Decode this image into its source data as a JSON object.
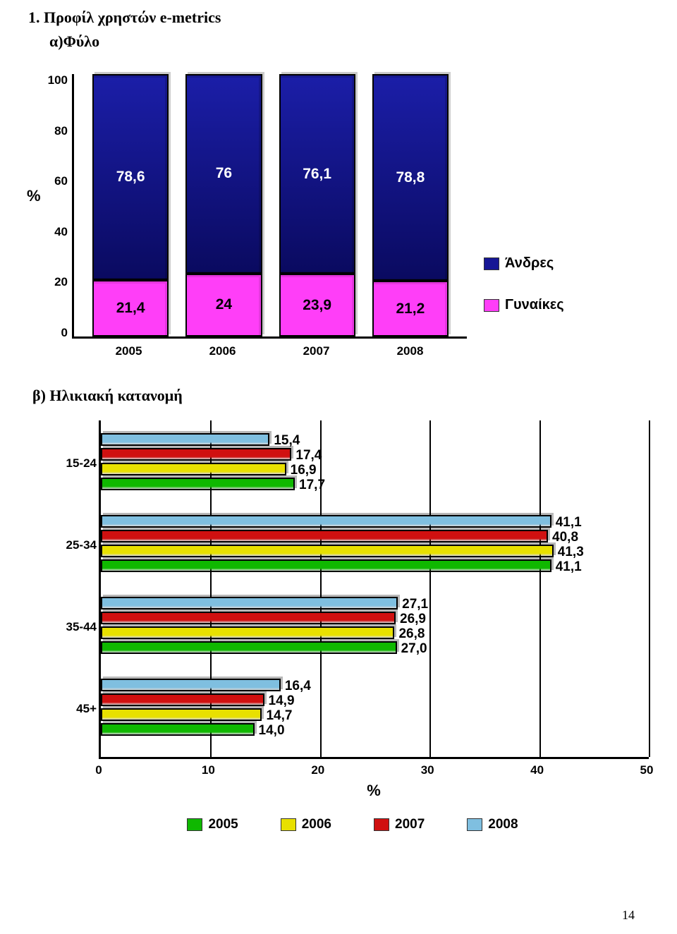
{
  "page": {
    "title1": "1. Προφίλ χρηστών e-metrics",
    "title2": "α)Φύλο",
    "title3": "β) Ηλικιακή κατανομή",
    "page_number": "14"
  },
  "stacked_chart": {
    "type": "stacked-bar-100",
    "y_axis_label": "%",
    "ylim": [
      0,
      100
    ],
    "ytick_step": 20,
    "y_ticks": [
      "100",
      "80",
      "60",
      "40",
      "20",
      "0"
    ],
    "categories": [
      "2005",
      "2006",
      "2007",
      "2008"
    ],
    "series": [
      {
        "name": "Άνδρες",
        "color_top": "#1b1ea8",
        "color_bottom": "#0a0a60",
        "label_color": "#ffffff"
      },
      {
        "name": "Γυναίκες",
        "color": "#ff3ef8",
        "label_color": "#000000"
      }
    ],
    "data": {
      "men": [
        78.6,
        76,
        76.1,
        78.8
      ],
      "women": [
        21.4,
        24,
        23.9,
        21.2
      ],
      "men_labels": [
        "78,6",
        "76",
        "76,1",
        "78,8"
      ],
      "women_labels": [
        "21,4",
        "24",
        "23,9",
        "21,2"
      ]
    },
    "legend": [
      {
        "label": "Άνδρες",
        "color": "#161695"
      },
      {
        "label": "Γυναίκες",
        "color": "#ff3ef8"
      }
    ],
    "plot_background": "#ffffff"
  },
  "hbar_chart": {
    "type": "grouped-horizontal-bar",
    "x_axis_label": "%",
    "xlim": [
      0,
      50
    ],
    "xtick_step": 10,
    "x_ticks": [
      "0",
      "10",
      "20",
      "30",
      "40",
      "50"
    ],
    "categories": [
      "15-24",
      "25-34",
      "35-44",
      "45+"
    ],
    "series": [
      {
        "year": "2008",
        "color": "#7fbfe0",
        "legend_color": "#7fbfe0"
      },
      {
        "year": "2007",
        "color": "#d01010",
        "legend_color": "#d01010"
      },
      {
        "year": "2006",
        "color": "#e8e000",
        "legend_color": "#e8e000"
      },
      {
        "year": "2005",
        "color": "#0fb800",
        "legend_color": "#0fb800"
      }
    ],
    "data": {
      "15-24": {
        "2008": 15.4,
        "2007": 17.4,
        "2006": 16.9,
        "2005": 17.7,
        "labels": {
          "2008": "15,4",
          "2007": "17,4",
          "2006": "16,9",
          "2005": "17,7"
        }
      },
      "25-34": {
        "2008": 41.1,
        "2007": 40.8,
        "2006": 41.3,
        "2005": 41.1,
        "labels": {
          "2008": "41,1",
          "2007": "40,8",
          "2006": "41,3",
          "2005": "41,1"
        }
      },
      "35-44": {
        "2008": 27.1,
        "2007": 26.9,
        "2006": 26.8,
        "2005": 27.0,
        "labels": {
          "2008": "27,1",
          "2007": "26,9",
          "2006": "26,8",
          "2005": "27,0"
        }
      },
      "45+": {
        "2008": 16.4,
        "2007": 14.9,
        "2006": 14.7,
        "2005": 14.0,
        "labels": {
          "2008": "16,4",
          "2007": "14,9",
          "2006": "14,7",
          "2005": "14,0"
        }
      }
    },
    "legend": [
      {
        "label": "2005",
        "color": "#0fb800"
      },
      {
        "label": "2006",
        "color": "#e8e000"
      },
      {
        "label": "2007",
        "color": "#d01010"
      },
      {
        "label": "2008",
        "color": "#7fbfe0"
      }
    ],
    "grid_color": "#000000",
    "plot_background": "#ffffff"
  }
}
